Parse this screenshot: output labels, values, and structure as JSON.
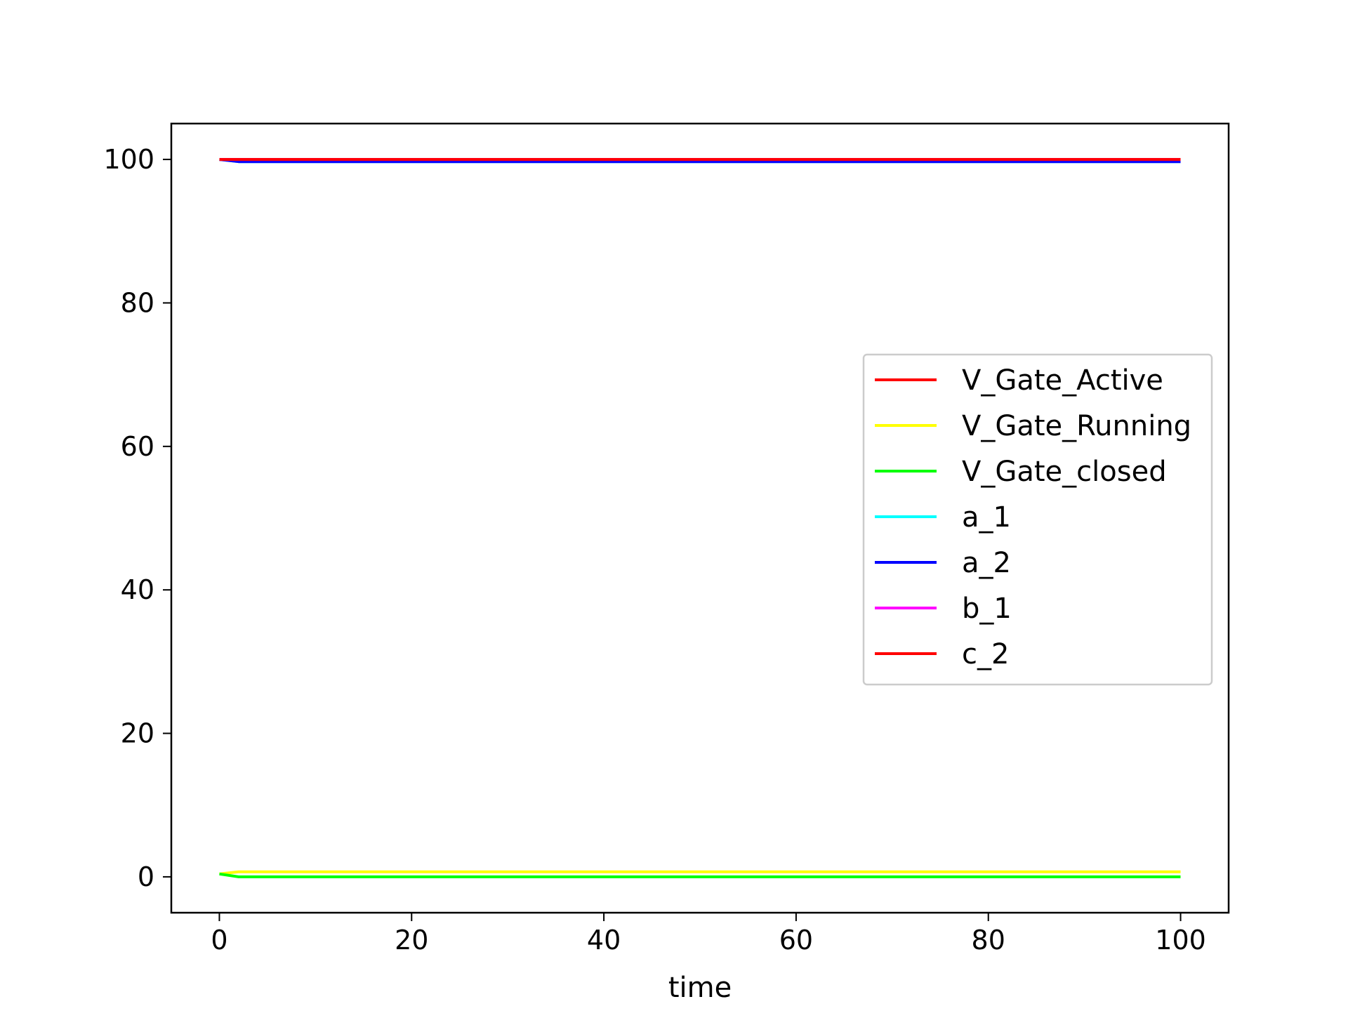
{
  "chart_data": {
    "type": "line",
    "title": "",
    "xlabel": "time",
    "ylabel": "",
    "xlim": [
      -5,
      105
    ],
    "ylim": [
      -5,
      105
    ],
    "xticks": [
      0,
      20,
      40,
      60,
      80,
      100
    ],
    "yticks": [
      0,
      20,
      40,
      60,
      80,
      100
    ],
    "x_tick_labels": [
      "0",
      "20",
      "40",
      "60",
      "80",
      "100"
    ],
    "y_tick_labels": [
      "0",
      "20",
      "40",
      "60",
      "80",
      "100"
    ],
    "grid": false,
    "legend_position": "center-right",
    "series": [
      {
        "name": "V_Gate_Active",
        "color": "#ff0000",
        "x": [
          0,
          2,
          100
        ],
        "y": [
          100,
          100,
          100
        ]
      },
      {
        "name": "V_Gate_Running",
        "color": "#ffff00",
        "x": [
          0,
          2,
          100
        ],
        "y": [
          0.4,
          0.7,
          0.7
        ]
      },
      {
        "name": "V_Gate_closed",
        "color": "#00ff00",
        "x": [
          0,
          2,
          100
        ],
        "y": [
          0.4,
          0,
          0
        ]
      },
      {
        "name": "a_1",
        "color": "#00ffff",
        "x": [
          0,
          2,
          100
        ],
        "y": [
          100,
          99.7,
          99.7
        ]
      },
      {
        "name": "a_2",
        "color": "#0000ff",
        "x": [
          0,
          2,
          100
        ],
        "y": [
          100,
          99.7,
          99.7
        ]
      },
      {
        "name": "b_1",
        "color": "#ff00ff",
        "x": [
          0,
          2,
          100
        ],
        "y": [
          100,
          100,
          100
        ]
      },
      {
        "name": "c_2",
        "color": "#ff0000",
        "x": [
          0,
          2,
          100
        ],
        "y": [
          100,
          100,
          100
        ]
      }
    ]
  }
}
